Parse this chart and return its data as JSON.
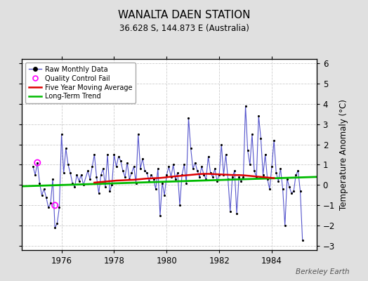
{
  "title": "WANALTA DAEN STATION",
  "subtitle": "36.628 S, 144.873 E (Australia)",
  "ylabel": "Temperature Anomaly (°C)",
  "credit": "Berkeley Earth",
  "ylim": [
    -3.2,
    6.2
  ],
  "yticks": [
    -3,
    -2,
    -1,
    0,
    1,
    2,
    3,
    4,
    5,
    6
  ],
  "xlim": [
    1974.5,
    1985.7
  ],
  "xticks": [
    1976,
    1978,
    1980,
    1982,
    1984
  ],
  "bg_color": "#e0e0e0",
  "plot_bg_color": "#ffffff",
  "line_color": "#5555cc",
  "marker_color": "#000000",
  "ma_color": "#dd0000",
  "trend_color": "#00bb00",
  "qc_color": "#ff00ff",
  "raw_data": [
    [
      1974.917,
      0.9
    ],
    [
      1975.0,
      0.5
    ],
    [
      1975.083,
      1.1
    ],
    [
      1975.167,
      0.1
    ],
    [
      1975.25,
      -0.5
    ],
    [
      1975.333,
      -0.2
    ],
    [
      1975.417,
      -0.6
    ],
    [
      1975.5,
      -1.1
    ],
    [
      1975.583,
      -0.9
    ],
    [
      1975.667,
      0.3
    ],
    [
      1975.75,
      -2.1
    ],
    [
      1975.833,
      -1.9
    ],
    [
      1975.917,
      -1.1
    ],
    [
      1976.0,
      2.5
    ],
    [
      1976.083,
      0.6
    ],
    [
      1976.167,
      1.8
    ],
    [
      1976.25,
      1.0
    ],
    [
      1976.333,
      0.6
    ],
    [
      1976.417,
      0.1
    ],
    [
      1976.5,
      -0.1
    ],
    [
      1976.583,
      0.5
    ],
    [
      1976.667,
      0.2
    ],
    [
      1976.75,
      0.5
    ],
    [
      1976.833,
      0.0
    ],
    [
      1977.0,
      0.7
    ],
    [
      1977.083,
      0.3
    ],
    [
      1977.167,
      0.9
    ],
    [
      1977.25,
      1.5
    ],
    [
      1977.333,
      0.4
    ],
    [
      1977.417,
      -0.4
    ],
    [
      1977.5,
      0.5
    ],
    [
      1977.583,
      0.8
    ],
    [
      1977.667,
      -0.1
    ],
    [
      1977.75,
      1.5
    ],
    [
      1977.833,
      -0.3
    ],
    [
      1977.917,
      0.0
    ],
    [
      1978.0,
      1.5
    ],
    [
      1978.083,
      0.9
    ],
    [
      1978.167,
      1.4
    ],
    [
      1978.25,
      1.2
    ],
    [
      1978.333,
      0.7
    ],
    [
      1978.417,
      0.4
    ],
    [
      1978.5,
      1.1
    ],
    [
      1978.583,
      0.3
    ],
    [
      1978.667,
      0.6
    ],
    [
      1978.75,
      0.9
    ],
    [
      1978.833,
      0.1
    ],
    [
      1978.917,
      2.5
    ],
    [
      1979.0,
      0.8
    ],
    [
      1979.083,
      1.3
    ],
    [
      1979.167,
      0.7
    ],
    [
      1979.25,
      0.6
    ],
    [
      1979.333,
      0.2
    ],
    [
      1979.417,
      0.5
    ],
    [
      1979.5,
      0.3
    ],
    [
      1979.583,
      -0.2
    ],
    [
      1979.667,
      0.8
    ],
    [
      1979.75,
      -1.5
    ],
    [
      1979.833,
      0.1
    ],
    [
      1979.917,
      -0.5
    ],
    [
      1980.0,
      0.5
    ],
    [
      1980.083,
      0.9
    ],
    [
      1980.167,
      0.4
    ],
    [
      1980.25,
      1.0
    ],
    [
      1980.333,
      0.3
    ],
    [
      1980.417,
      0.6
    ],
    [
      1980.5,
      -1.0
    ],
    [
      1980.583,
      0.5
    ],
    [
      1980.667,
      1.0
    ],
    [
      1980.75,
      0.1
    ],
    [
      1980.833,
      3.3
    ],
    [
      1980.917,
      1.8
    ],
    [
      1981.0,
      0.8
    ],
    [
      1981.083,
      1.1
    ],
    [
      1981.167,
      0.7
    ],
    [
      1981.25,
      0.4
    ],
    [
      1981.333,
      0.9
    ],
    [
      1981.417,
      0.5
    ],
    [
      1981.5,
      0.3
    ],
    [
      1981.583,
      1.4
    ],
    [
      1981.667,
      0.6
    ],
    [
      1981.75,
      0.4
    ],
    [
      1981.833,
      0.8
    ],
    [
      1981.917,
      0.2
    ],
    [
      1982.0,
      0.5
    ],
    [
      1982.083,
      2.0
    ],
    [
      1982.167,
      0.5
    ],
    [
      1982.25,
      1.5
    ],
    [
      1982.333,
      0.3
    ],
    [
      1982.417,
      -1.3
    ],
    [
      1982.5,
      0.4
    ],
    [
      1982.583,
      0.7
    ],
    [
      1982.667,
      -1.4
    ],
    [
      1982.75,
      0.4
    ],
    [
      1982.833,
      0.2
    ],
    [
      1982.917,
      0.4
    ],
    [
      1983.0,
      3.9
    ],
    [
      1983.083,
      1.7
    ],
    [
      1983.167,
      1.0
    ],
    [
      1983.25,
      2.5
    ],
    [
      1983.333,
      0.7
    ],
    [
      1983.417,
      0.4
    ],
    [
      1983.5,
      3.4
    ],
    [
      1983.583,
      2.3
    ],
    [
      1983.667,
      0.5
    ],
    [
      1983.75,
      1.5
    ],
    [
      1983.833,
      0.3
    ],
    [
      1983.917,
      -0.2
    ],
    [
      1984.0,
      0.9
    ],
    [
      1984.083,
      2.2
    ],
    [
      1984.167,
      0.6
    ],
    [
      1984.25,
      0.2
    ],
    [
      1984.333,
      0.8
    ],
    [
      1984.417,
      -0.2
    ],
    [
      1984.5,
      -2.0
    ],
    [
      1984.583,
      0.3
    ],
    [
      1984.667,
      -0.1
    ],
    [
      1984.75,
      -0.4
    ],
    [
      1984.833,
      -0.3
    ],
    [
      1984.917,
      0.5
    ],
    [
      1985.0,
      0.7
    ],
    [
      1985.083,
      -0.3
    ],
    [
      1985.167,
      -2.7
    ]
  ],
  "qc_fail_points": [
    [
      1975.083,
      1.1
    ],
    [
      1975.75,
      -1.0
    ]
  ],
  "moving_avg": [
    [
      1977.25,
      0.12
    ],
    [
      1977.417,
      0.14
    ],
    [
      1977.583,
      0.16
    ],
    [
      1977.75,
      0.18
    ],
    [
      1977.917,
      0.2
    ],
    [
      1978.083,
      0.22
    ],
    [
      1978.25,
      0.23
    ],
    [
      1978.417,
      0.24
    ],
    [
      1978.583,
      0.25
    ],
    [
      1978.75,
      0.26
    ],
    [
      1978.917,
      0.28
    ],
    [
      1979.083,
      0.3
    ],
    [
      1979.25,
      0.32
    ],
    [
      1979.417,
      0.33
    ],
    [
      1979.583,
      0.34
    ],
    [
      1979.75,
      0.35
    ],
    [
      1979.917,
      0.37
    ],
    [
      1980.083,
      0.4
    ],
    [
      1980.25,
      0.42
    ],
    [
      1980.417,
      0.44
    ],
    [
      1980.583,
      0.46
    ],
    [
      1980.75,
      0.48
    ],
    [
      1980.917,
      0.5
    ],
    [
      1981.083,
      0.52
    ],
    [
      1981.25,
      0.54
    ],
    [
      1981.417,
      0.55
    ],
    [
      1981.583,
      0.55
    ],
    [
      1981.75,
      0.54
    ],
    [
      1981.917,
      0.53
    ],
    [
      1982.083,
      0.52
    ],
    [
      1982.25,
      0.51
    ],
    [
      1982.417,
      0.5
    ],
    [
      1982.583,
      0.49
    ],
    [
      1982.75,
      0.49
    ],
    [
      1982.917,
      0.48
    ],
    [
      1983.083,
      0.46
    ],
    [
      1983.25,
      0.44
    ],
    [
      1983.417,
      0.42
    ],
    [
      1983.583,
      0.4
    ],
    [
      1983.75,
      0.38
    ],
    [
      1983.917,
      0.36
    ],
    [
      1984.083,
      0.34
    ]
  ],
  "trend_x": [
    1974.5,
    1985.7
  ],
  "trend_y": [
    -0.06,
    0.4
  ]
}
